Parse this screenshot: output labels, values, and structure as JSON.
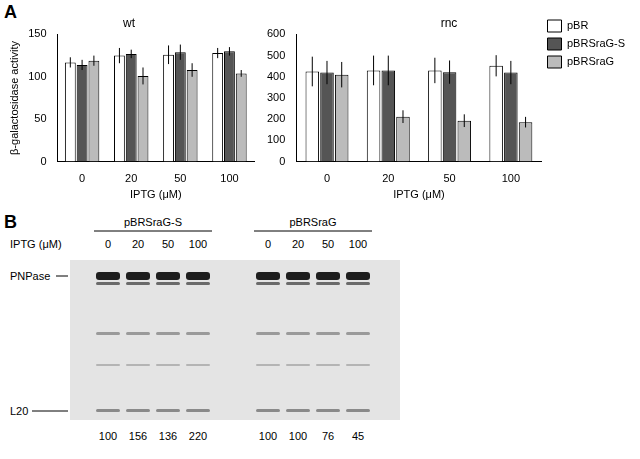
{
  "panel_labels": [
    "A",
    "B"
  ],
  "chart_data": [
    {
      "type": "bar",
      "title": "wt",
      "y_label": "β-galactosidase activity",
      "x_label": "IPTG (μM)",
      "categories": [
        "0",
        "20",
        "50",
        "100"
      ],
      "ylim": [
        0,
        150
      ],
      "yticks": [
        0,
        50,
        100,
        150
      ],
      "grid": false,
      "series": [
        {
          "name": "pBR",
          "color": "#ffffff",
          "values": [
            117,
            125,
            126,
            128
          ],
          "errors": [
            6,
            9,
            11,
            6
          ]
        },
        {
          "name": "pBRSraG-S",
          "color": "#555555",
          "values": [
            114,
            127,
            129,
            130
          ],
          "errors": [
            6,
            5,
            9,
            5
          ]
        },
        {
          "name": "pBRSraG",
          "color": "#bbbbbb",
          "values": [
            119,
            101,
            108,
            104
          ],
          "errors": [
            6,
            10,
            8,
            4
          ]
        }
      ]
    },
    {
      "type": "bar",
      "title": "rnc",
      "x_label": "IPTG (μM)",
      "categories": [
        "0",
        "20",
        "50",
        "100"
      ],
      "ylim": [
        0,
        600
      ],
      "yticks": [
        0,
        100,
        200,
        300,
        400,
        500,
        600
      ],
      "grid": false,
      "legend": "right",
      "series": [
        {
          "name": "pBR",
          "color": "#ffffff",
          "values": [
            425,
            430,
            430,
            452
          ],
          "errors": [
            70,
            70,
            60,
            50
          ]
        },
        {
          "name": "pBRSraG-S",
          "color": "#555555",
          "values": [
            420,
            430,
            422,
            420
          ],
          "errors": [
            55,
            70,
            55,
            55
          ]
        },
        {
          "name": "pBRSraG",
          "color": "#bbbbbb",
          "values": [
            410,
            212,
            193,
            186
          ],
          "errors": [
            60,
            30,
            30,
            25
          ]
        }
      ]
    }
  ],
  "blot": {
    "iptg_label": "IPTG (μM)",
    "bands": [
      "PNPase",
      "L20"
    ],
    "groups": [
      {
        "label": "pBRSraG-S",
        "iptg": [
          0,
          20,
          50,
          100
        ],
        "quantification": [
          100,
          156,
          136,
          220
        ]
      },
      {
        "label": "pBRSraG",
        "iptg": [
          0,
          20,
          50,
          100
        ],
        "quantification": [
          100,
          100,
          76,
          45
        ]
      }
    ]
  }
}
